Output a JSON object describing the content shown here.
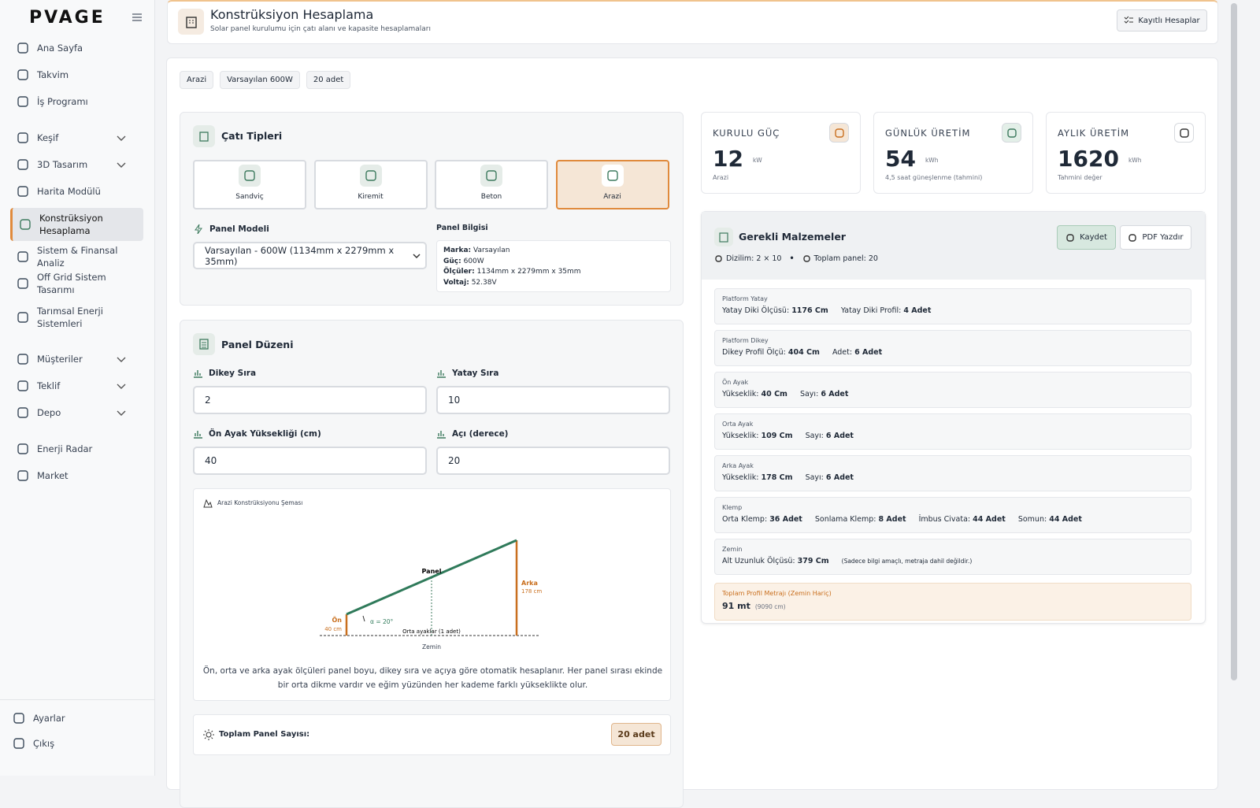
{
  "sidebar": {
    "logo": "PVAGE",
    "menu": [
      {
        "label": "Ana Sayfa"
      },
      {
        "label": "Takvim"
      },
      {
        "label": "İş Programı"
      },
      {
        "label": "Keşif",
        "has_submenu": true
      },
      {
        "label": "3D Tasarım",
        "has_submenu": true
      },
      {
        "label": "Harita Modülü"
      },
      {
        "label": "Konstrüksiyon Hesaplama",
        "active": true
      },
      {
        "label": "Sistem & Finansal Analiz"
      },
      {
        "label": "Off Grid Sistem Tasarımı"
      },
      {
        "label": "Tarımsal Enerji Sistemleri"
      },
      {
        "label": "Müşteriler",
        "has_submenu": true
      },
      {
        "label": "Teklif",
        "has_submenu": true
      },
      {
        "label": "Depo",
        "has_submenu": true
      },
      {
        "label": "Enerji Radar"
      },
      {
        "label": "Market"
      }
    ],
    "footer": [
      "Ayarlar",
      "Çıkış"
    ]
  },
  "header": {
    "title": "Konstrüksiyon Hesaplama",
    "subtitle": "Solar panel kurulumu için çatı alanı ve kapasite hesaplamaları",
    "button": "Kayıtlı Hesaplar"
  },
  "tags": [
    "Arazi",
    "Varsayılan 600W",
    "20 adet"
  ],
  "roof": {
    "title": "Çatı Tipleri",
    "options": [
      "Sandviç",
      "Kiremit",
      "Beton",
      "Arazi"
    ],
    "selected": 3,
    "model_label": "Panel Modeli",
    "model_value": "Varsayılan - 600W (1134mm x 2279mm x 35mm)",
    "info_title": "Panel Bilgisi",
    "info": [
      {
        "label": "Marka:",
        "value": "Varsayılan"
      },
      {
        "label": "Güç:",
        "value": "600W"
      },
      {
        "label": "Ölçüler:",
        "value": "1134mm x 2279mm x 35mm"
      },
      {
        "label": "Voltaj:",
        "value": "52.38V"
      }
    ]
  },
  "layout": {
    "title": "Panel Düzeni",
    "fields": [
      {
        "label": "Dikey Sıra",
        "value": 2
      },
      {
        "label": "Yatay Sıra",
        "value": 10
      },
      {
        "label": "Ön Ayak Yüksekliği (cm)",
        "value": 40
      },
      {
        "label": "Açı (derece)",
        "value": 20
      }
    ],
    "diagram": {
      "title": "Arazi Konstrüksiyonu Şeması",
      "panel": "Panel",
      "back": "Arka",
      "back_height": "178 cm",
      "front": "Ön",
      "front_height": "40 cm",
      "angle": "α = 20°",
      "middle": "Orta ayaklar (1 adet)",
      "ground": "Zemin",
      "note": "Ön, orta ve arka ayak ölçüleri panel boyu, dikey sıra ve açıya göre otomatik hesaplanır. Her panel sırası ekinde bir orta dikme vardır ve eğim yüzünden her kademe farklı yükseklikte olur."
    },
    "total_label": "Toplam Panel Sayısı:",
    "total_value": "20 adet"
  },
  "stats": [
    {
      "label": "KURULU GÜÇ",
      "value": 12,
      "unit": "kW",
      "note": "Arazi"
    },
    {
      "label": "GÜNLÜK ÜRETİM",
      "value": 54,
      "unit": "kWh",
      "note": "4,5 saat güneşlenme (tahmini)"
    },
    {
      "label": "AYLIK ÜRETİM",
      "value": 1620,
      "unit": "kWh",
      "note": "Tahmini değer"
    }
  ],
  "materials": {
    "title": "Gerekli Malzemeler",
    "buttons": [
      "Kaydet",
      "PDF Yazdır"
    ],
    "summary": [
      "Dizilim: 2 × 10",
      "Toplam panel: 20"
    ],
    "items": [
      {
        "title": "Platform Yatay",
        "fields": [
          {
            "label": "Yatay Diki Ölçüsü:",
            "value": "1176 Cm"
          },
          {
            "label": "Yatay Diki Profil:",
            "value": "4 Adet"
          }
        ]
      },
      {
        "title": "Platform Dikey",
        "fields": [
          {
            "label": "Dikey Profil Ölçü:",
            "value": "404 Cm"
          },
          {
            "label": "Adet:",
            "value": "6 Adet"
          }
        ]
      },
      {
        "title": "Ön Ayak",
        "fields": [
          {
            "label": "Yükseklik:",
            "value": "40 Cm"
          },
          {
            "label": "Sayı:",
            "value": "6 Adet"
          }
        ]
      },
      {
        "title": "Orta Ayak",
        "fields": [
          {
            "label": "Yükseklik:",
            "value": "109 Cm"
          },
          {
            "label": "Sayı:",
            "value": "6 Adet"
          }
        ]
      },
      {
        "title": "Arka Ayak",
        "fields": [
          {
            "label": "Yükseklik:",
            "value": "178 Cm"
          },
          {
            "label": "Sayı:",
            "value": "6 Adet"
          }
        ]
      },
      {
        "title": "Klemp",
        "fields": [
          {
            "label": "Orta Klemp:",
            "value": "36 Adet"
          },
          {
            "label": "Sonlama Klemp:",
            "value": "8 Adet"
          },
          {
            "label": "İmbus Civata:",
            "value": "44 Adet"
          },
          {
            "label": "Somun:",
            "value": "44 Adet"
          }
        ]
      },
      {
        "title": "Zemin",
        "fields": [
          {
            "label": "Alt Uzunluk Ölçüsü:",
            "value": "379 Cm"
          }
        ],
        "note": "(Sadece bilgi amaçlı, metraja dahil değildir.)"
      }
    ],
    "total_title": "Toplam Profil Metrajı (Zemin Hariç)",
    "total_value": "91 mt",
    "total_sub": "(9090 cm)"
  }
}
